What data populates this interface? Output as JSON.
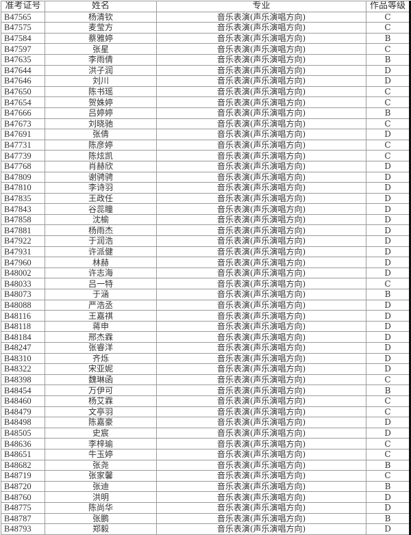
{
  "headers": [
    "准考证号",
    "姓名",
    "专业",
    "作品等级"
  ],
  "rows": [
    [
      "B47565",
      "杨清钦",
      "音乐表演(声乐演唱方向)",
      "C"
    ],
    [
      "B47575",
      "麦莹方",
      "音乐表演(声乐演唱方向)",
      "C"
    ],
    [
      "B47584",
      "蔡雅婷",
      "音乐表演(声乐演唱方向)",
      "B"
    ],
    [
      "B47597",
      "张星",
      "音乐表演(声乐演唱方向)",
      "C"
    ],
    [
      "B47635",
      "李雨倩",
      "音乐表演(声乐演唱方向)",
      "B"
    ],
    [
      "B47644",
      "洪子润",
      "音乐表演(声乐演唱方向)",
      "D"
    ],
    [
      "B47646",
      "刘川",
      "音乐表演(声乐演唱方向)",
      "D"
    ],
    [
      "B47650",
      "陈书瑶",
      "音乐表演(声乐演唱方向)",
      "C"
    ],
    [
      "B47654",
      "贺姝婷",
      "音乐表演(声乐演唱方向)",
      "C"
    ],
    [
      "B47666",
      "吕婷婷",
      "音乐表演(声乐演唱方向)",
      "B"
    ],
    [
      "B47673",
      "刘晓驰",
      "音乐表演(声乐演唱方向)",
      "C"
    ],
    [
      "B47691",
      "张倩",
      "音乐表演(声乐演唱方向)",
      "D"
    ],
    [
      "B47731",
      "陈彦婷",
      "音乐表演(声乐演唱方向)",
      "C"
    ],
    [
      "B47739",
      "陈炫凯",
      "音乐表演(声乐演唱方向)",
      "C"
    ],
    [
      "B47768",
      "肖赫欣",
      "音乐表演(声乐演唱方向)",
      "D"
    ],
    [
      "B47809",
      "谢骋骋",
      "音乐表演(声乐演唱方向)",
      "D"
    ],
    [
      "B47810",
      "李诗羽",
      "音乐表演(声乐演唱方向)",
      "D"
    ],
    [
      "B47835",
      "王政任",
      "音乐表演(声乐演唱方向)",
      "D"
    ],
    [
      "B47843",
      "谷蕊瞳",
      "音乐表演(声乐演唱方向)",
      "D"
    ],
    [
      "B47858",
      "沈榆",
      "音乐表演(声乐演唱方向)",
      "D"
    ],
    [
      "B47881",
      "杨雨杰",
      "音乐表演(声乐演唱方向)",
      "D"
    ],
    [
      "B47922",
      "于润浩",
      "音乐表演(声乐演唱方向)",
      "D"
    ],
    [
      "B47931",
      "许派健",
      "音乐表演(声乐演唱方向)",
      "D"
    ],
    [
      "B47960",
      "林赫",
      "音乐表演(声乐演唱方向)",
      "D"
    ],
    [
      "B48002",
      "许志海",
      "音乐表演(声乐演唱方向)",
      "D"
    ],
    [
      "B48033",
      "吕一特",
      "音乐表演(声乐演唱方向)",
      "C"
    ],
    [
      "B48073",
      "于涵",
      "音乐表演(声乐演唱方向)",
      "B"
    ],
    [
      "B48088",
      "严浩丞",
      "音乐表演(声乐演唱方向)",
      "D"
    ],
    [
      "B48116",
      "王嘉祺",
      "音乐表演(声乐演唱方向)",
      "D"
    ],
    [
      "B48118",
      "蒋申",
      "音乐表演(声乐演唱方向)",
      "D"
    ],
    [
      "B48184",
      "邢杰霖",
      "音乐表演(声乐演唱方向)",
      "D"
    ],
    [
      "B48247",
      "张睿洋",
      "音乐表演(声乐演唱方向)",
      "D"
    ],
    [
      "B48310",
      "齐烁",
      "音乐表演(声乐演唱方向)",
      "D"
    ],
    [
      "B48322",
      "宋亚妮",
      "音乐表演(声乐演唱方向)",
      "D"
    ],
    [
      "B48398",
      "魏琳函",
      "音乐表演(声乐演唱方向)",
      "C"
    ],
    [
      "B48454",
      "万伊可",
      "音乐表演(声乐演唱方向)",
      "B"
    ],
    [
      "B48460",
      "杨艾霖",
      "音乐表演(声乐演唱方向)",
      "C"
    ],
    [
      "B48479",
      "文亭羽",
      "音乐表演(声乐演唱方向)",
      "C"
    ],
    [
      "B48498",
      "陈嘉豪",
      "音乐表演(声乐演唱方向)",
      "D"
    ],
    [
      "B48505",
      "史宸",
      "音乐表演(声乐演唱方向)",
      "D"
    ],
    [
      "B48636",
      "李梓瑜",
      "音乐表演(声乐演唱方向)",
      "C"
    ],
    [
      "B48651",
      "牛玉婷",
      "音乐表演(声乐演唱方向)",
      "C"
    ],
    [
      "B48682",
      "张尧",
      "音乐表演(声乐演唱方向)",
      "B"
    ],
    [
      "B48719",
      "张家馨",
      "音乐表演(声乐演唱方向)",
      "C"
    ],
    [
      "B48720",
      "张迪",
      "音乐表演(声乐演唱方向)",
      "B"
    ],
    [
      "B48760",
      "洪明",
      "音乐表演(声乐演唱方向)",
      "D"
    ],
    [
      "B48775",
      "陈尚华",
      "音乐表演(声乐演唱方向)",
      "D"
    ],
    [
      "B48787",
      "张鹏",
      "音乐表演(声乐演唱方向)",
      "B"
    ],
    [
      "B48793",
      "郑毅",
      "音乐表演(声乐演唱方向)",
      "D"
    ]
  ]
}
